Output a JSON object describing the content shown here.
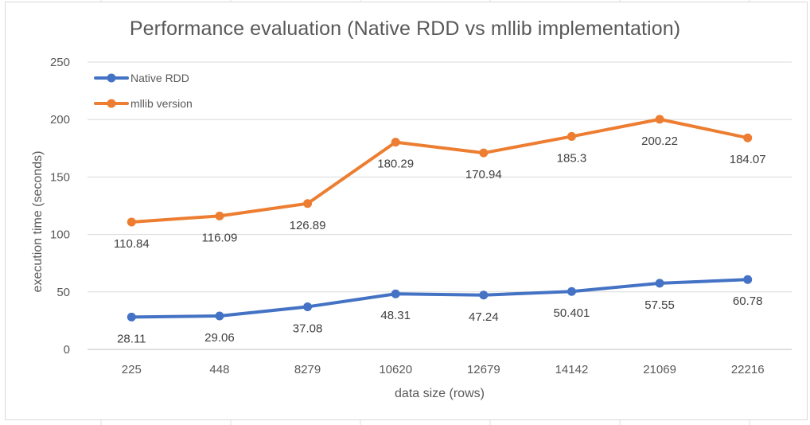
{
  "chart_data": {
    "type": "line",
    "title": "Performance evaluation (Native RDD vs mllib implementation)",
    "xlabel": "data size (rows)",
    "ylabel": "execution time (seconds)",
    "categories": [
      "225",
      "448",
      "8279",
      "10620",
      "12679",
      "14142",
      "21069",
      "22216"
    ],
    "ylim": [
      0,
      250
    ],
    "yticks": [
      0,
      50,
      100,
      150,
      200,
      250
    ],
    "grid": true,
    "legend_position": "top-left",
    "series": [
      {
        "name": "Native RDD",
        "color": "#4472c4",
        "values": [
          28.11,
          29.06,
          37.08,
          48.31,
          47.24,
          50.401,
          57.55,
          60.78
        ],
        "labels": [
          "28.11",
          "29.06",
          "37.08",
          "48.31",
          "47.24",
          "50.401",
          "57.55",
          "60.78"
        ]
      },
      {
        "name": "mllib version",
        "color": "#ed7d31",
        "values": [
          110.84,
          116.09,
          126.89,
          180.29,
          170.94,
          185.3,
          200.22,
          184.07
        ],
        "labels": [
          "110.84",
          "116.09",
          "126.89",
          "180.29",
          "170.94",
          "185.3",
          "200.22",
          "184.07"
        ]
      }
    ]
  }
}
